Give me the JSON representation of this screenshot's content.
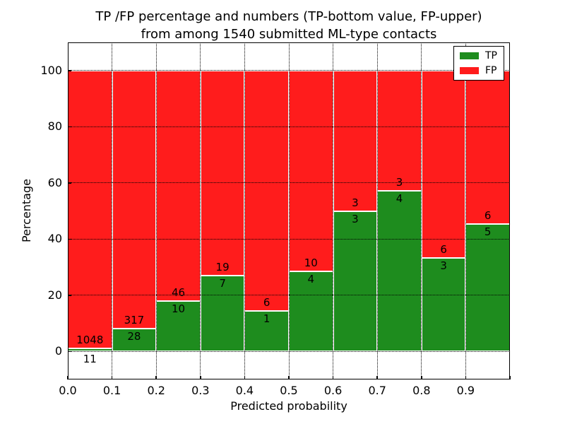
{
  "title": {
    "line1": "TP /FP percentage and numbers (TP-bottom value, FP-upper)",
    "line2": "from among 1540 submitted ML-type contacts"
  },
  "axes": {
    "xlabel": "Predicted probability",
    "ylabel": "Percentage"
  },
  "legend": [
    {
      "label": "TP",
      "color": "#1e8c1e"
    },
    {
      "label": "FP",
      "color": "#ff1c1c"
    }
  ],
  "colors": {
    "tp": "#1e8c1e",
    "fp": "#ff1c1c",
    "bar_edge": "#ffffff",
    "grid": "#000000",
    "background": "#ffffff",
    "text": "#000000"
  },
  "chart_data": {
    "type": "bar",
    "stacked": true,
    "normalized_to_percent": 100,
    "title": "TP /FP percentage and numbers (TP-bottom value, FP-upper) from among 1540 submitted ML-type contacts",
    "xlabel": "Predicted probability",
    "ylabel": "Percentage",
    "total_submitted": 1540,
    "xlim": [
      0.0,
      1.0
    ],
    "ylim": [
      -10,
      110
    ],
    "grid": true,
    "legend_position": "upper right",
    "xticks": [
      "0.0",
      "0.1",
      "0.2",
      "0.3",
      "0.4",
      "0.5",
      "0.6",
      "0.7",
      "0.8",
      "0.9"
    ],
    "yticks": [
      0,
      20,
      40,
      60,
      80,
      100
    ],
    "series": [
      {
        "name": "TP",
        "color": "#1e8c1e",
        "position": "bottom"
      },
      {
        "name": "FP",
        "color": "#ff1c1c",
        "position": "top"
      }
    ],
    "bins": [
      {
        "range": "0.0-0.1",
        "tp": 11,
        "fp": 1048,
        "tp_pct": 1.0,
        "fp_pct": 99.0
      },
      {
        "range": "0.1-0.2",
        "tp": 28,
        "fp": 317,
        "tp_pct": 8.1,
        "fp_pct": 91.9
      },
      {
        "range": "0.2-0.3",
        "tp": 10,
        "fp": 46,
        "tp_pct": 17.9,
        "fp_pct": 82.1
      },
      {
        "range": "0.3-0.4",
        "tp": 7,
        "fp": 19,
        "tp_pct": 26.9,
        "fp_pct": 73.1
      },
      {
        "range": "0.4-0.5",
        "tp": 1,
        "fp": 6,
        "tp_pct": 14.3,
        "fp_pct": 85.7
      },
      {
        "range": "0.5-0.6",
        "tp": 4,
        "fp": 10,
        "tp_pct": 28.6,
        "fp_pct": 71.4
      },
      {
        "range": "0.6-0.7",
        "tp": 3,
        "fp": 3,
        "tp_pct": 50.0,
        "fp_pct": 50.0
      },
      {
        "range": "0.7-0.8",
        "tp": 4,
        "fp": 3,
        "tp_pct": 57.1,
        "fp_pct": 42.9
      },
      {
        "range": "0.8-0.9",
        "tp": 3,
        "fp": 6,
        "tp_pct": 33.3,
        "fp_pct": 66.7
      },
      {
        "range": "0.9-1.0",
        "tp": 5,
        "fp": 6,
        "tp_pct": 45.5,
        "fp_pct": 54.5
      }
    ]
  }
}
